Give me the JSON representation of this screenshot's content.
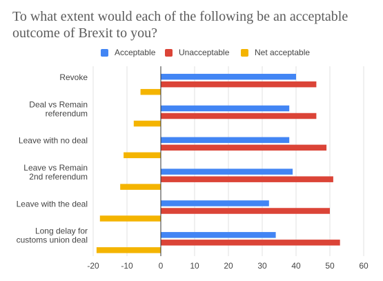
{
  "title": "To what extent would each of the following be an acceptable outcome of Brexit to you?",
  "legend": {
    "items": [
      {
        "label": "Acceptable",
        "color": "#4285f4"
      },
      {
        "label": "Unacceptable",
        "color": "#db4437"
      },
      {
        "label": "Net acceptable",
        "color": "#f4b400"
      }
    ]
  },
  "chart_data": {
    "type": "bar",
    "orientation": "horizontal",
    "title": "To what extent would each of the following be an acceptable outcome of Brexit to you?",
    "categories": [
      [
        "Revoke"
      ],
      [
        "Deal vs Remain",
        "referendum"
      ],
      [
        "Leave with no deal"
      ],
      [
        "Leave vs Remain",
        "2nd referendum"
      ],
      [
        "Leave with the deal"
      ],
      [
        "Long delay for",
        "customs union deal"
      ]
    ],
    "series": [
      {
        "name": "Acceptable",
        "color": "#4285f4",
        "values": [
          40,
          38,
          38,
          39,
          32,
          34
        ]
      },
      {
        "name": "Unacceptable",
        "color": "#db4437",
        "values": [
          46,
          46,
          49,
          51,
          50,
          53
        ]
      },
      {
        "name": "Net acceptable",
        "color": "#f4b400",
        "values": [
          -6,
          -8,
          -11,
          -12,
          -18,
          -19
        ]
      }
    ],
    "xlim": [
      -20,
      60
    ],
    "xticks": [
      -20,
      -10,
      0,
      10,
      20,
      30,
      40,
      50,
      60
    ],
    "grid": "vertical",
    "legend_position": "top"
  }
}
